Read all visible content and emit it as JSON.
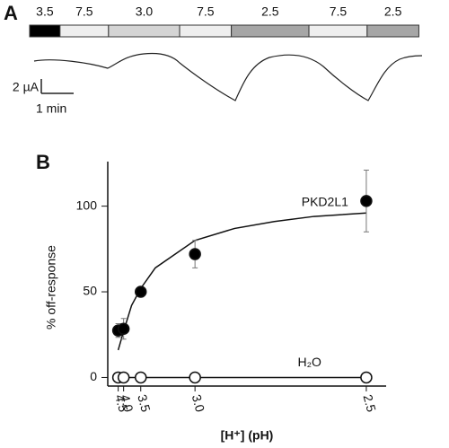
{
  "panel_a": {
    "panel_label": "A",
    "segments": [
      {
        "label": "3.5",
        "color": "#000000",
        "minutes": 0.94
      },
      {
        "label": "7.5",
        "color": "#eeeeee",
        "minutes": 1.5
      },
      {
        "label": "3.0",
        "color": "#d4d4d4",
        "minutes": 2.2
      },
      {
        "label": "7.5",
        "color": "#eeeeee",
        "minutes": 1.6
      },
      {
        "label": "2.5",
        "color": "#a6a6a6",
        "minutes": 2.4
      },
      {
        "label": "7.5",
        "color": "#eeeeee",
        "minutes": 1.8
      },
      {
        "label": "2.5",
        "color": "#a6a6a6",
        "minutes": 1.6
      }
    ],
    "scale_current": "2 µA",
    "scale_time": "1 min",
    "scale_time_minutes": 1
  },
  "chart_data": {
    "type": "scatter",
    "panel_label": "B",
    "y_label": "% off-response",
    "x_label": "[H⁺] (pH)",
    "xlim": [
      -0.1,
      3.41
    ],
    "ylim": [
      -5,
      126
    ],
    "xticks": [
      {
        "value": 0.0316,
        "label": "4.5"
      },
      {
        "value": 0.1,
        "label": "4.0"
      },
      {
        "value": 0.316,
        "label": "3.5"
      },
      {
        "value": 1,
        "label": "3.0"
      },
      {
        "value": 3.16,
        "label": "2.5"
      }
    ],
    "yticks": [
      0,
      50,
      100
    ],
    "series": [
      {
        "name": "PKD2L1",
        "color": "#000000",
        "x": [
          0.0316,
          0.1,
          0.316,
          1,
          3.16
        ],
        "values": [
          27.4,
          28.4,
          50,
          72,
          103
        ],
        "errors": [
          4,
          6,
          3,
          8,
          18
        ]
      },
      {
        "name": "H₂O",
        "color": "#ffffff",
        "x": [
          0.0316,
          0.1,
          0.316,
          1,
          3.16
        ],
        "values": [
          0,
          0,
          0,
          0,
          0
        ]
      }
    ],
    "fit": {
      "x": [
        0.0316,
        0.1,
        0.2,
        0.316,
        0.5,
        1,
        1.5,
        2,
        2.5,
        3.16
      ],
      "values": [
        16,
        27,
        42,
        52,
        64,
        80,
        87,
        91,
        94,
        96
      ]
    }
  }
}
